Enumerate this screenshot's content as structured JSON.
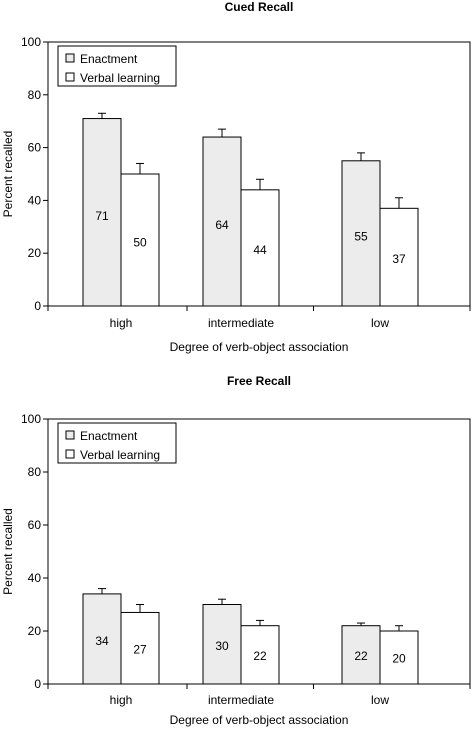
{
  "chart_data": [
    {
      "type": "bar",
      "title": "Cued Recall",
      "xlabel": "Degree of verb-object association",
      "ylabel": "Percent recalled",
      "ylim": [
        0,
        100
      ],
      "yticks": [
        "0",
        "20",
        "40",
        "60",
        "80",
        "100"
      ],
      "categories": [
        "high",
        "intermediate",
        "low"
      ],
      "legend_position": "top-left",
      "grid": false,
      "series": [
        {
          "name": "Enactment",
          "values": [
            71,
            64,
            55
          ],
          "errors": [
            2,
            3,
            3
          ],
          "labels": [
            "71",
            "64",
            "55"
          ],
          "color": "#ececec"
        },
        {
          "name": "Verbal learning",
          "values": [
            50,
            44,
            37
          ],
          "errors": [
            4,
            4,
            4
          ],
          "labels": [
            "50",
            "44",
            "37"
          ],
          "color": "#ffffff"
        }
      ]
    },
    {
      "type": "bar",
      "title": "Free Recall",
      "xlabel": "Degree of verb-object association",
      "ylabel": "Percent recalled",
      "ylim": [
        0,
        100
      ],
      "yticks": [
        "0",
        "20",
        "40",
        "60",
        "80",
        "100"
      ],
      "categories": [
        "high",
        "intermediate",
        "low"
      ],
      "legend_position": "top-left",
      "grid": false,
      "series": [
        {
          "name": "Enactment",
          "values": [
            34,
            30,
            22
          ],
          "errors": [
            2,
            2,
            1
          ],
          "labels": [
            "34",
            "30",
            "22"
          ],
          "color": "#ececec"
        },
        {
          "name": "Verbal learning",
          "values": [
            27,
            22,
            20
          ],
          "errors": [
            3,
            2,
            2
          ],
          "labels": [
            "27",
            "22",
            "20"
          ],
          "color": "#ffffff"
        }
      ]
    }
  ]
}
